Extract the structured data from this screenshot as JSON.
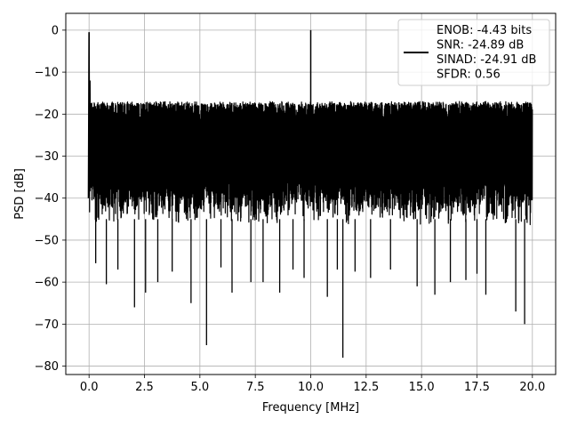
{
  "chart_data": {
    "type": "line",
    "title": "",
    "xlabel": "Frequency [MHz]",
    "ylabel": "PSD [dB]",
    "xlim": [
      -1.05,
      21.05
    ],
    "ylim": [
      -82.0,
      4.0
    ],
    "x_ticks": [
      0.0,
      2.5,
      5.0,
      7.5,
      10.0,
      12.5,
      15.0,
      17.5,
      20.0
    ],
    "x_tick_labels": [
      "0.0",
      "2.5",
      "5.0",
      "7.5",
      "10.0",
      "12.5",
      "15.0",
      "17.5",
      "20.0"
    ],
    "y_ticks": [
      0,
      -10,
      -20,
      -30,
      -40,
      -50,
      -60,
      -70,
      -80
    ],
    "y_tick_labels": [
      "0",
      "−10",
      "−20",
      "−30",
      "−40",
      "−50",
      "−60",
      "−70",
      "−80"
    ],
    "grid": true,
    "legend_position": "top-right",
    "series": [
      {
        "legend_lines": [
          "ENOB: -4.43 bits",
          "SNR: -24.89 dB",
          "SINAD: -24.91 dB",
          "SFDR: 0.56"
        ],
        "color": "#000000",
        "x_range": [
          0.0,
          20.0
        ],
        "noise_band_db": [
          -45,
          -17
        ],
        "peaks": [
          {
            "x": 0.0,
            "y": -0.5
          },
          {
            "x": 10.0,
            "y": 0.0
          }
        ],
        "dips": [
          {
            "x": 0.3,
            "y": -55.5
          },
          {
            "x": 0.78,
            "y": -60.5
          },
          {
            "x": 1.3,
            "y": -57.0
          },
          {
            "x": 2.05,
            "y": -66.0
          },
          {
            "x": 2.55,
            "y": -62.5
          },
          {
            "x": 3.1,
            "y": -60.0
          },
          {
            "x": 3.75,
            "y": -57.5
          },
          {
            "x": 4.6,
            "y": -65.0
          },
          {
            "x": 5.3,
            "y": -75.0
          },
          {
            "x": 5.95,
            "y": -56.5
          },
          {
            "x": 6.45,
            "y": -62.5
          },
          {
            "x": 7.3,
            "y": -60.0
          },
          {
            "x": 7.85,
            "y": -60.0
          },
          {
            "x": 8.6,
            "y": -62.5
          },
          {
            "x": 9.2,
            "y": -57.0
          },
          {
            "x": 9.7,
            "y": -59.0
          },
          {
            "x": 10.75,
            "y": -63.5
          },
          {
            "x": 11.2,
            "y": -57.0
          },
          {
            "x": 11.45,
            "y": -78.0
          },
          {
            "x": 12.0,
            "y": -57.5
          },
          {
            "x": 12.7,
            "y": -59.0
          },
          {
            "x": 13.6,
            "y": -57.0
          },
          {
            "x": 14.8,
            "y": -61.0
          },
          {
            "x": 15.6,
            "y": -63.0
          },
          {
            "x": 16.3,
            "y": -60.0
          },
          {
            "x": 17.0,
            "y": -59.5
          },
          {
            "x": 17.5,
            "y": -58.0
          },
          {
            "x": 17.9,
            "y": -63.0
          },
          {
            "x": 19.25,
            "y": -67.0
          },
          {
            "x": 19.65,
            "y": -70.0
          }
        ]
      }
    ]
  },
  "colors": {
    "line": "#000000",
    "grid": "#b0b0b0",
    "axes": "#000000",
    "legend_border": "#cccccc"
  }
}
